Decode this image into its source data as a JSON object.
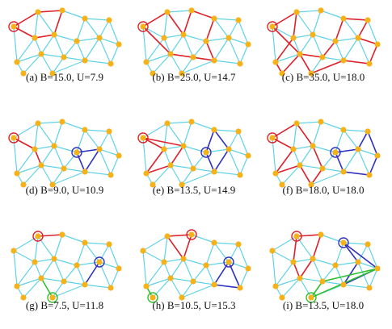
{
  "panels": [
    {
      "caption": "(a) B=15.0, U=7.9"
    },
    {
      "caption": "(b) B=25.0, U=14.7"
    },
    {
      "caption": "(c) B=35.0, U=18.0"
    },
    {
      "caption": "(d) B=9.0, U=10.9"
    },
    {
      "caption": "(e) B=13.5, U=14.9"
    },
    {
      "caption": "(f) B=18.0, U=18.0"
    },
    {
      "caption": "(g) B=7.5, U=11.8"
    },
    {
      "caption": "(h) B=10.5, U=15.3"
    },
    {
      "caption": "(i) B=13.5, U=18.0"
    }
  ]
}
